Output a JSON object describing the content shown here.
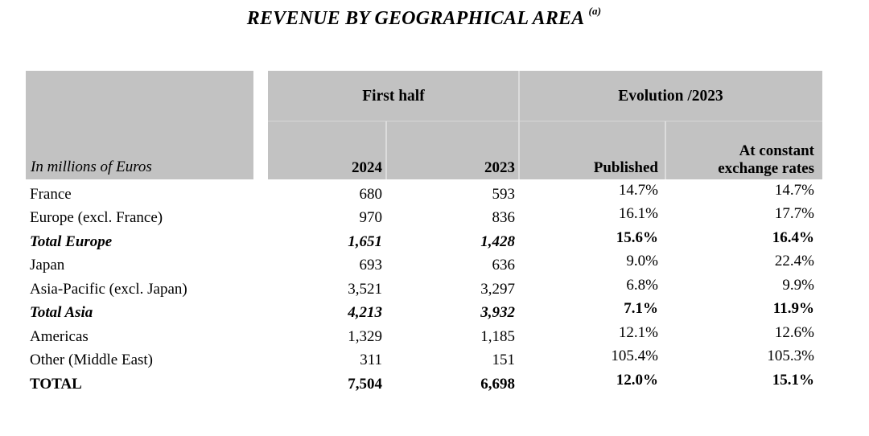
{
  "title": {
    "text": "REVENUE BY GEOGRAPHICAL AREA",
    "footnote_marker": "(a)"
  },
  "table": {
    "unit_label": "In millions of Euros",
    "group_headers": {
      "first_half": "First half",
      "evolution": "Evolution /2023"
    },
    "column_headers": {
      "y2024": "2024",
      "y2023": "2023",
      "published": "Published",
      "constant": "At constant\nexchange rates"
    },
    "rows": [
      {
        "label": "France",
        "y2024": "680",
        "y2023": "593",
        "published": "14.7%",
        "constant": "14.7%"
      },
      {
        "label": "Europe (excl. France)",
        "y2024": "970",
        "y2023": "836",
        "published": "16.1%",
        "constant": "17.7%"
      },
      {
        "label": "Total Europe",
        "y2024": "1,651",
        "y2023": "1,428",
        "published": "15.6%",
        "constant": "16.4%"
      },
      {
        "label": "Japan",
        "y2024": "693",
        "y2023": "636",
        "published": "9.0%",
        "constant": "22.4%"
      },
      {
        "label": "Asia-Pacific (excl. Japan)",
        "y2024": "3,521",
        "y2023": "3,297",
        "published": "6.8%",
        "constant": "9.9%"
      },
      {
        "label": "Total Asia",
        "y2024": "4,213",
        "y2023": "3,932",
        "published": "7.1%",
        "constant": "11.9%"
      },
      {
        "label": "Americas",
        "y2024": "1,329",
        "y2023": "1,185",
        "published": "12.1%",
        "constant": "12.6%"
      },
      {
        "label": "Other (Middle East)",
        "y2024": "311",
        "y2023": "151",
        "published": "105.4%",
        "constant": "105.3%"
      },
      {
        "label": "TOTAL",
        "y2024": "7,504",
        "y2023": "6,698",
        "published": "12.0%",
        "constant": "15.1%"
      }
    ]
  },
  "colors": {
    "header_bg": "#c2c2c2",
    "separator": "#dcdcdc",
    "text": "#000000",
    "background": "#ffffff"
  }
}
